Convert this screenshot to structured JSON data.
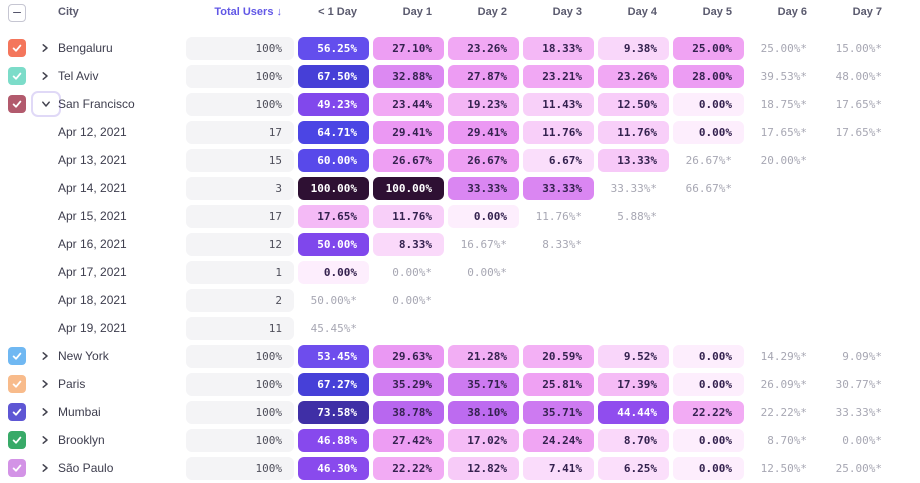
{
  "header": {
    "city_label": "City",
    "total_users_label": "Total Users",
    "sort_arrow": "↓",
    "accent_color": "#6157e6",
    "day_columns": [
      "< 1 Day",
      "Day 1",
      "Day 2",
      "Day 3",
      "Day 4",
      "Day 5",
      "Day 6",
      "Day 7"
    ],
    "select_all_state": "indeterminate"
  },
  "colors": {
    "ramp": [
      [
        0,
        "#fdeefd"
      ],
      [
        5,
        "#fbe2fb"
      ],
      [
        10,
        "#f9d5fa"
      ],
      [
        15,
        "#f6c3f7"
      ],
      [
        20,
        "#f3b2f5"
      ],
      [
        25,
        "#f0a3f3"
      ],
      [
        30,
        "#ea97f3"
      ],
      [
        35,
        "#d27ef1"
      ],
      [
        40,
        "#b060ef"
      ],
      [
        45,
        "#8c4bee"
      ],
      [
        50,
        "#7f47ec"
      ],
      [
        55,
        "#664fee"
      ],
      [
        60,
        "#5849ea"
      ],
      [
        65,
        "#4a45e4"
      ],
      [
        70,
        "#4139c9"
      ],
      [
        75,
        "#3e2b98"
      ],
      [
        100,
        "#2e1033"
      ]
    ],
    "chip_text_dark": "#34224f",
    "chip_text_light": "#ffffff",
    "white_text_threshold": 42,
    "starred_text": "#a7a7b3",
    "total_chip_bg": "#f4f4f6"
  },
  "rows": [
    {
      "kind": "city",
      "label": "Bengaluru",
      "checkbox_color": "#f4765c",
      "checked": true,
      "expanded": false,
      "total": "100%",
      "cells": [
        "56.25%",
        "27.10%",
        "23.26%",
        "18.33%",
        "9.38%",
        "25.00%",
        "25.00%*",
        "15.00%*"
      ]
    },
    {
      "kind": "city",
      "label": "Tel Aviv",
      "checkbox_color": "#7cdcc9",
      "checked": true,
      "expanded": false,
      "total": "100%",
      "cells": [
        "67.50%",
        "32.88%",
        "27.87%",
        "23.21%",
        "23.26%",
        "28.00%",
        "39.53%*",
        "48.00%*"
      ]
    },
    {
      "kind": "city",
      "label": "San Francisco",
      "checkbox_color": "#b25a6d",
      "checked": true,
      "expanded": true,
      "total": "100%",
      "cells": [
        "49.23%",
        "23.44%",
        "19.23%",
        "11.43%",
        "12.50%",
        "0.00%",
        "18.75%*",
        "17.65%*"
      ]
    },
    {
      "kind": "date",
      "label": "Apr 12, 2021",
      "total": "17",
      "cells": [
        "64.71%",
        "29.41%",
        "29.41%",
        "11.76%",
        "11.76%",
        "0.00%",
        "17.65%*",
        "17.65%*"
      ]
    },
    {
      "kind": "date",
      "label": "Apr 13, 2021",
      "total": "15",
      "cells": [
        "60.00%",
        "26.67%",
        "26.67%",
        "6.67%",
        "13.33%",
        "26.67%*",
        "20.00%*",
        null
      ]
    },
    {
      "kind": "date",
      "label": "Apr 14, 2021",
      "total": "3",
      "cells": [
        "100.00%",
        "100.00%",
        "33.33%",
        "33.33%",
        "33.33%*",
        "66.67%*",
        null,
        null
      ]
    },
    {
      "kind": "date",
      "label": "Apr 15, 2021",
      "total": "17",
      "cells": [
        "17.65%",
        "11.76%",
        "0.00%",
        "11.76%*",
        "5.88%*",
        null,
        null,
        null
      ]
    },
    {
      "kind": "date",
      "label": "Apr 16, 2021",
      "total": "12",
      "cells": [
        "50.00%",
        "8.33%",
        "16.67%*",
        "8.33%*",
        null,
        null,
        null,
        null
      ]
    },
    {
      "kind": "date",
      "label": "Apr 17, 2021",
      "total": "1",
      "cells": [
        "0.00%",
        "0.00%*",
        "0.00%*",
        null,
        null,
        null,
        null,
        null
      ]
    },
    {
      "kind": "date",
      "label": "Apr 18, 2021",
      "total": "2",
      "cells": [
        "50.00%*",
        "0.00%*",
        null,
        null,
        null,
        null,
        null,
        null
      ]
    },
    {
      "kind": "date",
      "label": "Apr 19, 2021",
      "total": "11",
      "cells": [
        "45.45%*",
        null,
        null,
        null,
        null,
        null,
        null,
        null
      ]
    },
    {
      "kind": "city",
      "label": "New York",
      "checkbox_color": "#70b8f2",
      "checked": true,
      "expanded": false,
      "total": "100%",
      "cells": [
        "53.45%",
        "29.63%",
        "21.28%",
        "20.59%",
        "9.52%",
        "0.00%",
        "14.29%*",
        "9.09%*"
      ]
    },
    {
      "kind": "city",
      "label": "Paris",
      "checkbox_color": "#f8bb8b",
      "checked": true,
      "expanded": false,
      "total": "100%",
      "cells": [
        "67.27%",
        "35.29%",
        "35.71%",
        "25.81%",
        "17.39%",
        "0.00%",
        "26.09%*",
        "30.77%*"
      ]
    },
    {
      "kind": "city",
      "label": "Mumbai",
      "checkbox_color": "#5e56d4",
      "checked": true,
      "expanded": false,
      "total": "100%",
      "cells": [
        "73.58%",
        "38.78%",
        "38.10%",
        "35.71%",
        "44.44%",
        "22.22%",
        "22.22%*",
        "33.33%*"
      ]
    },
    {
      "kind": "city",
      "label": "Brooklyn",
      "checkbox_color": "#38aa68",
      "checked": true,
      "expanded": false,
      "total": "100%",
      "cells": [
        "46.88%",
        "27.42%",
        "17.02%",
        "24.24%",
        "8.70%",
        "0.00%",
        "8.70%*",
        "0.00%*"
      ]
    },
    {
      "kind": "city",
      "label": "São Paulo",
      "checkbox_color": "#d393e6",
      "checked": true,
      "expanded": false,
      "total": "100%",
      "cells": [
        "46.30%",
        "22.22%",
        "12.82%",
        "7.41%",
        "6.25%",
        "0.00%",
        "12.50%*",
        "25.00%*"
      ]
    }
  ]
}
